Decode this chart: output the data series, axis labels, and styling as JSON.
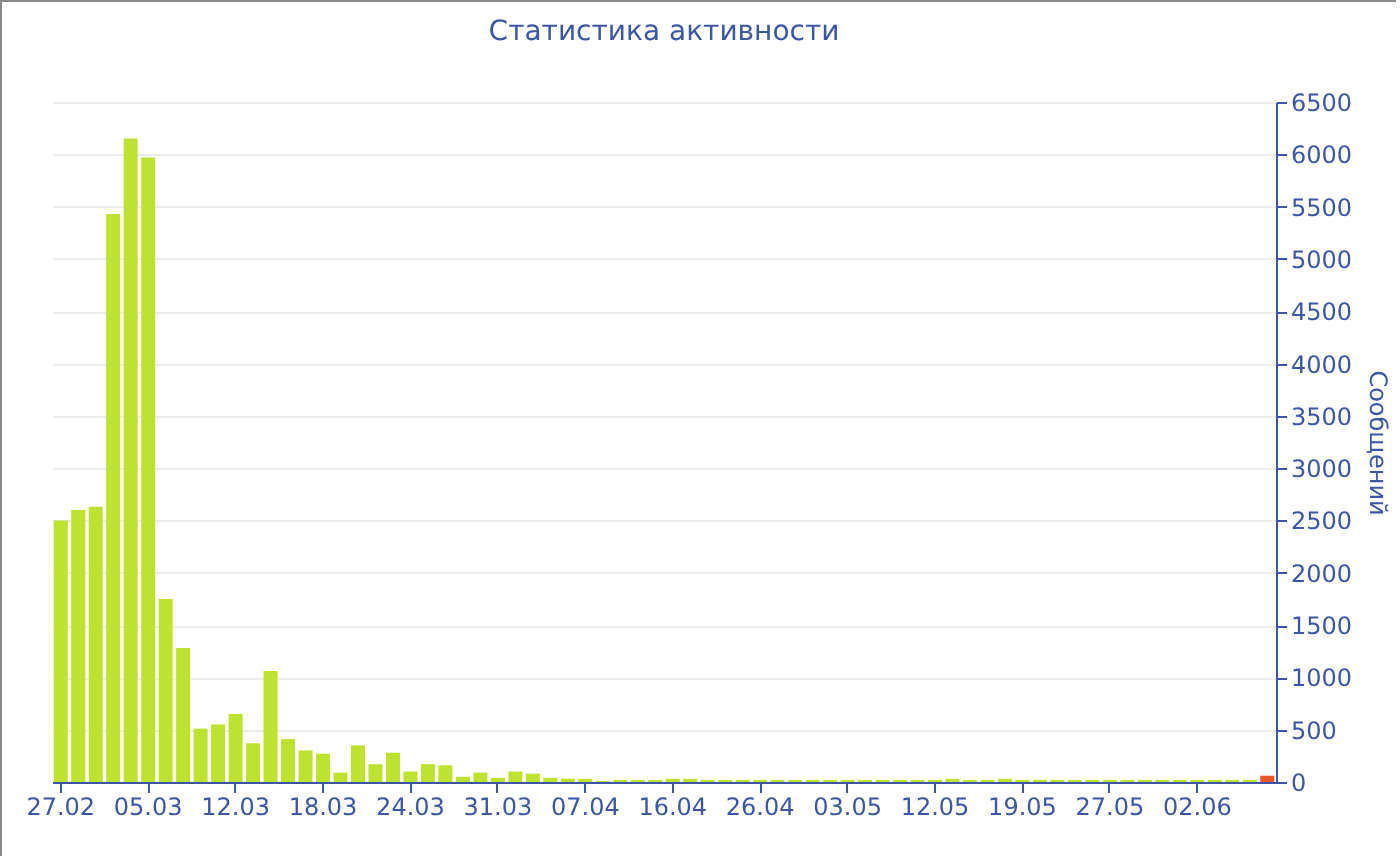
{
  "chart_data": {
    "type": "bar",
    "title": "Статистика активности",
    "ylabel": "Сообщений",
    "categories": [
      "27.02",
      null,
      null,
      null,
      null,
      "05.03",
      null,
      null,
      null,
      null,
      "12.03",
      null,
      null,
      null,
      null,
      "18.03",
      null,
      null,
      null,
      null,
      "24.03",
      null,
      null,
      null,
      null,
      "31.03",
      null,
      null,
      null,
      null,
      "07.04",
      null,
      null,
      null,
      null,
      "16.04",
      null,
      null,
      null,
      null,
      "26.04",
      null,
      null,
      null,
      null,
      "03.05",
      null,
      null,
      null,
      null,
      "12.05",
      null,
      null,
      null,
      null,
      "19.05",
      null,
      null,
      null,
      null,
      "27.05",
      null,
      null,
      null,
      null,
      "02.06",
      null,
      null,
      null,
      null
    ],
    "values": [
      2500,
      2600,
      2630,
      5430,
      6150,
      5970,
      1750,
      1280,
      510,
      550,
      650,
      370,
      1060,
      410,
      300,
      270,
      90,
      350,
      170,
      280,
      100,
      170,
      160,
      50,
      90,
      40,
      100,
      80,
      40,
      30,
      30,
      10,
      20,
      20,
      20,
      30,
      30,
      20,
      20,
      20,
      20,
      20,
      20,
      20,
      20,
      20,
      20,
      20,
      20,
      20,
      20,
      30,
      20,
      20,
      30,
      20,
      20,
      20,
      20,
      20,
      20,
      20,
      20,
      20,
      20,
      20,
      20,
      20,
      20,
      60
    ],
    "colors": [
      "#bde22f",
      "#bde22f",
      "#bde22f",
      "#bde22f",
      "#bde22f",
      "#bde22f",
      "#bde22f",
      "#bde22f",
      "#bde22f",
      "#bde22f",
      "#bde22f",
      "#bde22f",
      "#bde22f",
      "#bde22f",
      "#bde22f",
      "#bde22f",
      "#bde22f",
      "#bde22f",
      "#bde22f",
      "#bde22f",
      "#bde22f",
      "#bde22f",
      "#bde22f",
      "#bde22f",
      "#bde22f",
      "#bde22f",
      "#bde22f",
      "#bde22f",
      "#bde22f",
      "#bde22f",
      "#bde22f",
      "#bde22f",
      "#bde22f",
      "#bde22f",
      "#bde22f",
      "#bde22f",
      "#bde22f",
      "#bde22f",
      "#bde22f",
      "#bde22f",
      "#bde22f",
      "#bde22f",
      "#bde22f",
      "#bde22f",
      "#bde22f",
      "#bde22f",
      "#bde22f",
      "#bde22f",
      "#bde22f",
      "#bde22f",
      "#bde22f",
      "#bde22f",
      "#bde22f",
      "#bde22f",
      "#bde22f",
      "#bde22f",
      "#bde22f",
      "#bde22f",
      "#bde22f",
      "#bde22f",
      "#bde22f",
      "#bde22f",
      "#bde22f",
      "#bde22f",
      "#bde22f",
      "#bde22f",
      "#bde22f",
      "#bde22f",
      "#bde22f",
      "#e8562a"
    ],
    "ylim": [
      0,
      6500
    ],
    "yticks": [
      0,
      500,
      1000,
      1500,
      2000,
      2500,
      3000,
      3500,
      4000,
      4500,
      5000,
      5500,
      6000,
      6500
    ],
    "grid": "y"
  }
}
